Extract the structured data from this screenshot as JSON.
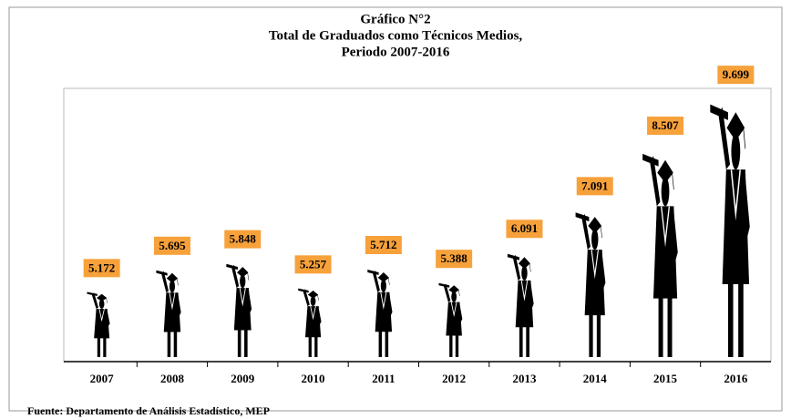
{
  "chart_data": {
    "type": "pictograph",
    "title": "Gráfico N°2",
    "subtitle": [
      "Total de  Graduados como Técnicos Medios,",
      "Periodo 2007-2016"
    ],
    "categories": [
      "2007",
      "2008",
      "2009",
      "2010",
      "2011",
      "2012",
      "2013",
      "2014",
      "2015",
      "2016"
    ],
    "values": [
      5172,
      5695,
      5848,
      5257,
      5712,
      5388,
      6091,
      7091,
      8507,
      9699
    ],
    "value_labels": [
      "5.172",
      "5.695",
      "5.848",
      "5.257",
      "5.712",
      "5.388",
      "6.091",
      "7.091",
      "8.507",
      "9.699"
    ],
    "color": "#000000",
    "label_color": "#f7a13b",
    "ylim": [
      3600,
      10000
    ],
    "source": "Fuente: Departamento de Análisis Estadístico, MEP"
  }
}
